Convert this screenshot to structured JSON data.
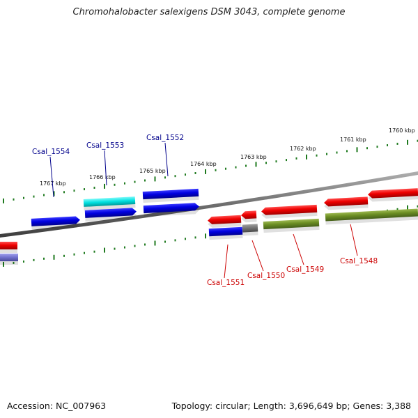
{
  "title": "Chromohalobacter salexigens DSM 3043, complete genome",
  "footer": {
    "accession": "Accession: NC_007963",
    "summary": "Topology: circular; Length: 3,696,649 bp; Genes: 3,388"
  },
  "colors": {
    "backbone": "#7f7f7f",
    "tick": "#1f7a1f",
    "forward_gene_label": "#00008b",
    "reverse_gene_label": "#cc0000",
    "blue": "#0000dd",
    "cyan": "#00e5e5",
    "red": "#ee0000",
    "olive": "#6b8e23",
    "gray": "#707070",
    "lavender": "#7777cc"
  },
  "ticks": [
    {
      "label": "1767 kbp"
    },
    {
      "label": "1766 kbp"
    },
    {
      "label": "1765 kbp"
    },
    {
      "label": "1764 kbp"
    },
    {
      "label": "1763 kbp"
    },
    {
      "label": "1762 kbp"
    },
    {
      "label": "1761 kbp"
    },
    {
      "label": "1760 kbp"
    }
  ],
  "labels": {
    "top": [
      "Csal_1554",
      "Csal_1553",
      "Csal_1552"
    ],
    "bottom": [
      "Csal_1551",
      "Csal_1550",
      "Csal_1549",
      "Csal_1548"
    ]
  },
  "features": [
    {
      "strand": "forward",
      "color": "blue"
    },
    {
      "strand": "forward",
      "color": "cyan"
    },
    {
      "strand": "forward",
      "color": "blue"
    },
    {
      "strand": "forward",
      "color": "blue"
    },
    {
      "strand": "forward",
      "color": "blue"
    },
    {
      "strand": "reverse",
      "color": "red"
    },
    {
      "strand": "reverse",
      "color": "red"
    },
    {
      "strand": "reverse",
      "color": "red"
    },
    {
      "strand": "reverse",
      "color": "red"
    },
    {
      "strand": "reverse",
      "color": "red"
    },
    {
      "strand": "forward",
      "color": "red"
    },
    {
      "strand": "forward",
      "color": "blue"
    },
    {
      "strand": "forward",
      "color": "gray"
    },
    {
      "strand": "forward",
      "color": "olive"
    },
    {
      "strand": "forward",
      "color": "olive"
    },
    {
      "strand": "forward",
      "color": "lavender"
    }
  ]
}
